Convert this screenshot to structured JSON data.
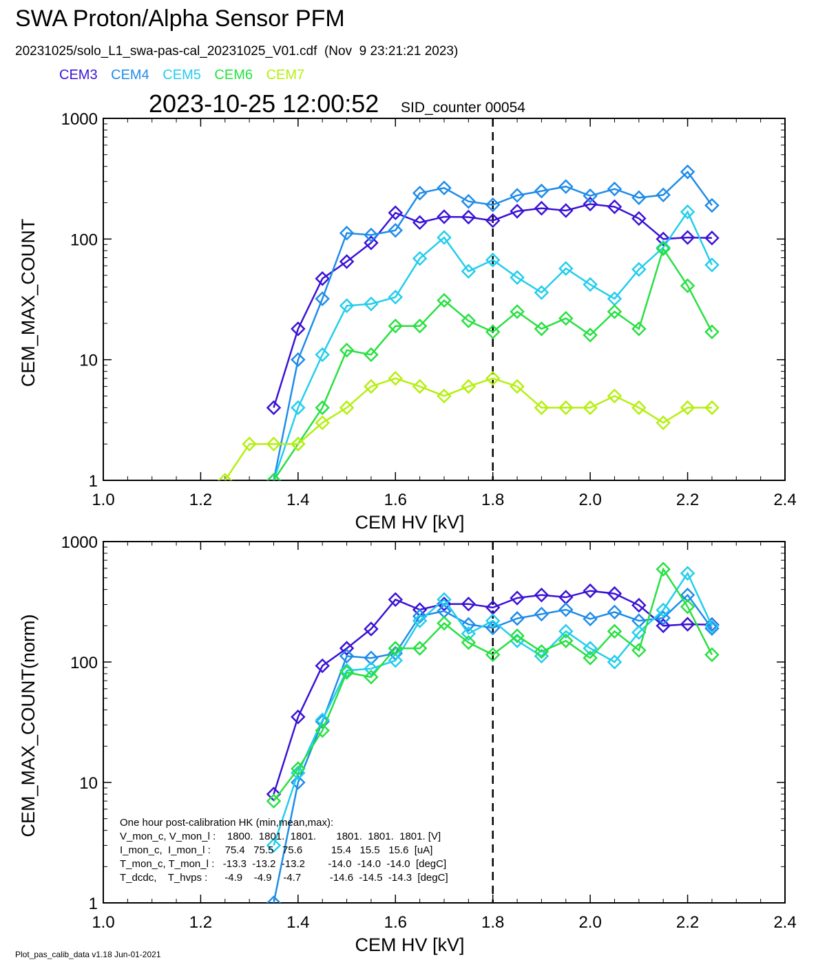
{
  "header": {
    "title": "SWA Proton/Alpha Sensor PFM",
    "subtitle": "20231025/solo_L1_swa-pas-cal_20231025_V01.cdf  (Nov  9 23:21:21 2023)",
    "timestamp": "2023-10-25 12:00:52",
    "sid_counter": "SID_counter 00054"
  },
  "footer": "Plot_pas_calib_data v1.18 Jun-01-2021",
  "series_colors": {
    "CEM3": "#3a12d6",
    "CEM4": "#1f8ce8",
    "CEM5": "#22cdec",
    "CEM6": "#27e040",
    "CEM7": "#b5ef10"
  },
  "chart_data": [
    {
      "type": "line",
      "xlabel": "CEM HV [kV]",
      "ylabel": "CEM_MAX_COUNT",
      "xlim": [
        1.0,
        2.4
      ],
      "ylim": [
        1,
        1000
      ],
      "yscale": "log",
      "xticks": [
        "1.0",
        "1.2",
        "1.4",
        "1.6",
        "1.8",
        "2.0",
        "2.2",
        "2.4"
      ],
      "yticks": [
        "1",
        "10",
        "100",
        "1000"
      ],
      "vline": 1.8,
      "legend": "top-left",
      "markers": "diamond",
      "series": [
        {
          "name": "CEM3",
          "x": [
            1.35,
            1.4,
            1.45,
            1.5,
            1.55,
            1.6,
            1.65,
            1.7,
            1.75,
            1.8,
            1.85,
            1.9,
            1.95,
            2.0,
            2.05,
            2.1,
            2.15,
            2.2,
            2.25
          ],
          "y": [
            4,
            18,
            47,
            65,
            93,
            165,
            137,
            153,
            152,
            142,
            170,
            180,
            172,
            195,
            185,
            148,
            100,
            103,
            102
          ]
        },
        {
          "name": "CEM4",
          "x": [
            1.35,
            1.4,
            1.45,
            1.5,
            1.55,
            1.6,
            1.65,
            1.7,
            1.75,
            1.8,
            1.85,
            1.9,
            1.95,
            2.0,
            2.05,
            2.1,
            2.15,
            2.2,
            2.25
          ],
          "y": [
            1,
            10,
            32,
            112,
            108,
            118,
            240,
            265,
            205,
            192,
            230,
            250,
            272,
            228,
            260,
            220,
            232,
            360,
            190
          ]
        },
        {
          "name": "CEM5",
          "x": [
            1.35,
            1.4,
            1.45,
            1.5,
            1.55,
            1.6,
            1.65,
            1.7,
            1.75,
            1.8,
            1.85,
            1.9,
            1.95,
            2.0,
            2.05,
            2.1,
            2.15,
            2.2,
            2.25
          ],
          "y": [
            1,
            4,
            11,
            28,
            29,
            33,
            69,
            103,
            54,
            67,
            48,
            36,
            57,
            42,
            32,
            56,
            85,
            168,
            61
          ]
        },
        {
          "name": "CEM6",
          "x": [
            1.35,
            1.4,
            1.45,
            1.5,
            1.55,
            1.6,
            1.65,
            1.7,
            1.75,
            1.8,
            1.85,
            1.9,
            1.95,
            2.0,
            2.05,
            2.1,
            2.15,
            2.2,
            2.25
          ],
          "y": [
            1,
            2,
            4,
            12,
            11,
            19,
            19,
            31,
            21,
            17,
            25,
            18,
            22,
            16,
            25,
            18,
            83,
            41,
            17
          ]
        },
        {
          "name": "CEM7",
          "x": [
            1.25,
            1.3,
            1.35,
            1.4,
            1.45,
            1.5,
            1.55,
            1.6,
            1.65,
            1.7,
            1.75,
            1.8,
            1.85,
            1.9,
            1.95,
            2.0,
            2.05,
            2.1,
            2.15,
            2.2,
            2.25
          ],
          "y": [
            1,
            2,
            2,
            2,
            3,
            4,
            6,
            7,
            6,
            5,
            6,
            7,
            6,
            4,
            4,
            4,
            5,
            4,
            3,
            4,
            4
          ]
        }
      ]
    },
    {
      "type": "line",
      "xlabel": "CEM HV [kV]",
      "ylabel": "CEM_MAX_COUNT(norm)",
      "xlim": [
        1.0,
        2.4
      ],
      "ylim": [
        1,
        1000
      ],
      "yscale": "log",
      "xticks": [
        "1.0",
        "1.2",
        "1.4",
        "1.6",
        "1.8",
        "2.0",
        "2.2",
        "2.4"
      ],
      "yticks": [
        "1",
        "10",
        "100",
        "1000"
      ],
      "vline": 1.8,
      "markers": "diamond",
      "series": [
        {
          "name": "CEM3",
          "x": [
            1.35,
            1.4,
            1.45,
            1.5,
            1.55,
            1.6,
            1.65,
            1.7,
            1.75,
            1.8,
            1.85,
            1.9,
            1.95,
            2.0,
            2.05,
            2.1,
            2.15,
            2.2,
            2.25
          ],
          "y": [
            8,
            35,
            93,
            130,
            188,
            330,
            272,
            303,
            303,
            283,
            340,
            360,
            345,
            390,
            370,
            296,
            200,
            206,
            204
          ]
        },
        {
          "name": "CEM4",
          "x": [
            1.35,
            1.4,
            1.45,
            1.5,
            1.55,
            1.6,
            1.65,
            1.7,
            1.75,
            1.8,
            1.85,
            1.9,
            1.95,
            2.0,
            2.05,
            2.1,
            2.15,
            2.2,
            2.25
          ],
          "y": [
            1,
            10,
            32,
            112,
            108,
            118,
            240,
            265,
            205,
            192,
            230,
            250,
            272,
            228,
            260,
            220,
            232,
            360,
            190
          ]
        },
        {
          "name": "CEM5",
          "x": [
            1.35,
            1.4,
            1.45,
            1.5,
            1.55,
            1.6,
            1.65,
            1.7,
            1.75,
            1.8,
            1.85,
            1.9,
            1.95,
            2.0,
            2.05,
            2.1,
            2.15,
            2.2,
            2.25
          ],
          "y": [
            3,
            12,
            33,
            85,
            88,
            103,
            220,
            330,
            172,
            220,
            150,
            112,
            180,
            130,
            100,
            176,
            270,
            545,
            200
          ]
        },
        {
          "name": "CEM6",
          "x": [
            1.35,
            1.4,
            1.45,
            1.5,
            1.55,
            1.6,
            1.65,
            1.7,
            1.75,
            1.8,
            1.85,
            1.9,
            1.95,
            2.0,
            2.05,
            2.1,
            2.15,
            2.2,
            2.25
          ],
          "y": [
            7,
            13,
            27,
            82,
            75,
            130,
            130,
            210,
            145,
            115,
            165,
            122,
            150,
            108,
            180,
            125,
            590,
            288,
            115
          ]
        }
      ],
      "annotation": [
        "One hour post-calibration HK (min,mean,max):",
        "V_mon_c, V_mon_l :    1800.  1801.  1801.       1801.  1801.  1801. [V]",
        "I_mon_c,  I_mon_l :     75.4   75.5   75.6          15.4   15.5   15.6  [uA]",
        "T_mon_c, T_mon_l :   -13.3  -13.2  -13.2        -14.0  -14.0  -14.0  [degC]",
        "T_dcdc,    T_hvps :      -4.9    -4.9    -4.7          -14.6  -14.5  -14.3  [degC]"
      ]
    }
  ]
}
